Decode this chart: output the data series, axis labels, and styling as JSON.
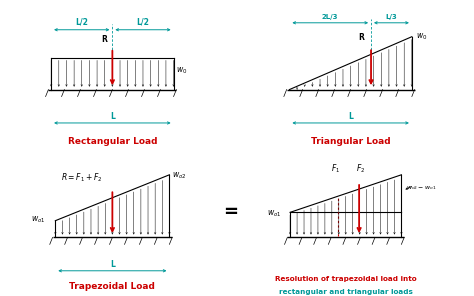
{
  "bg_color": "#ffffff",
  "teal": "#009999",
  "red": "#cc0000",
  "black": "#000000",
  "panels": [
    {
      "title": "Rectangular Load"
    },
    {
      "title": "Triangular Load"
    },
    {
      "title": "Trapezoidal Load"
    },
    {
      "title_red": "Resolution of trapezoidal load into",
      "title_teal": "rectangular and triangular loads"
    }
  ],
  "font_title": 6.5,
  "font_label": 5.5,
  "font_eq": 11
}
